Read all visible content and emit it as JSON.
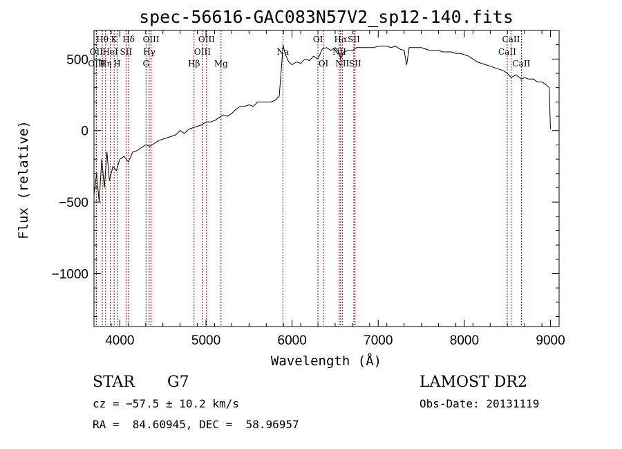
{
  "chart_data": {
    "type": "line",
    "title": "spec-56616-GAC083N57V2_sp12-140.fits",
    "xlabel": "Wavelength (Å)",
    "ylabel": "Flux (relative)",
    "xlim": [
      3700,
      9100
    ],
    "ylim": [
      -1370,
      700
    ],
    "x_ticks": [
      4000,
      5000,
      6000,
      7000,
      8000,
      9000
    ],
    "y_ticks": [
      -1000,
      -500,
      0,
      500
    ],
    "y_tick_labels": [
      "−1000",
      "−500",
      "0",
      "500"
    ],
    "series": [
      {
        "x": [
          3700,
          3730,
          3760,
          3790,
          3820,
          3850,
          3880,
          3920,
          3960,
          4000,
          4050,
          4100,
          4150,
          4200,
          4250,
          4300,
          4350,
          4400,
          4450,
          4500,
          4550,
          4600,
          4650,
          4700,
          4750,
          4800,
          4850,
          4900,
          4950,
          5000,
          5050,
          5100,
          5150,
          5200,
          5250,
          5300,
          5350,
          5400,
          5450,
          5500,
          5550,
          5600,
          5650,
          5700,
          5750,
          5800,
          5850,
          5880,
          5895,
          5910,
          5930,
          5960,
          6000,
          6050,
          6100,
          6150,
          6200,
          6250,
          6300,
          6350,
          6400,
          6450,
          6500,
          6550,
          6563,
          6600,
          6650,
          6700,
          6750,
          6800,
          6850,
          6900,
          6950,
          7000,
          7050,
          7100,
          7150,
          7200,
          7250,
          7300,
          7330,
          7360,
          7400,
          7450,
          7500,
          7550,
          7600,
          7650,
          7700,
          7750,
          7800,
          7850,
          7900,
          7950,
          8000,
          8050,
          8100,
          8150,
          8200,
          8250,
          8300,
          8350,
          8400,
          8450,
          8500,
          8542,
          8600,
          8662,
          8700,
          8750,
          8800,
          8850,
          8900,
          8950,
          8985,
          8995,
          9000
        ],
        "y": [
          -450,
          -300,
          -500,
          -200,
          -400,
          -150,
          -350,
          -250,
          -280,
          -200,
          -180,
          -220,
          -150,
          -140,
          -120,
          -100,
          -110,
          -90,
          -70,
          -60,
          -50,
          -40,
          -30,
          0,
          -20,
          10,
          20,
          30,
          40,
          60,
          60,
          70,
          90,
          110,
          100,
          120,
          150,
          170,
          170,
          180,
          170,
          200,
          200,
          200,
          200,
          210,
          240,
          470,
          600,
          560,
          520,
          480,
          460,
          480,
          470,
          500,
          490,
          520,
          500,
          570,
          580,
          560,
          580,
          540,
          500,
          550,
          560,
          560,
          580,
          580,
          580,
          580,
          580,
          590,
          590,
          590,
          580,
          590,
          570,
          560,
          460,
          580,
          580,
          580,
          580,
          570,
          560,
          560,
          560,
          550,
          550,
          550,
          540,
          540,
          530,
          520,
          500,
          480,
          470,
          460,
          450,
          440,
          430,
          420,
          400,
          370,
          390,
          360,
          370,
          360,
          360,
          340,
          340,
          320,
          300,
          100,
          10
        ]
      }
    ],
    "line_markers": [
      {
        "label": "Hθ",
        "wavelength": 3797,
        "row": 0
      },
      {
        "label": "OII",
        "wavelength": 3727,
        "row": 1
      },
      {
        "label": "OIII",
        "wavelength": 3727,
        "row": 2
      },
      {
        "label": "Hη",
        "wavelength": 3835,
        "row": 2
      },
      {
        "label": "HeI",
        "wavelength": 3889,
        "row": 1
      },
      {
        "label": "K",
        "wavelength": 3934,
        "row": 0
      },
      {
        "label": "H",
        "wavelength": 3969,
        "row": 2
      },
      {
        "label": "SII",
        "wavelength": 4072,
        "row": 1
      },
      {
        "label": "Hδ",
        "wavelength": 4102,
        "row": 0
      },
      {
        "label": "OIII",
        "wavelength": 4363,
        "row": 0
      },
      {
        "label": "Hγ",
        "wavelength": 4341,
        "row": 1
      },
      {
        "label": "G",
        "wavelength": 4304,
        "row": 2
      },
      {
        "label": "Hβ",
        "wavelength": 4861,
        "row": 2
      },
      {
        "label": "OIII",
        "wavelength": 5007,
        "row": 0
      },
      {
        "label": "OIII",
        "wavelength": 4959,
        "row": 1
      },
      {
        "label": "Mg",
        "wavelength": 5175,
        "row": 2
      },
      {
        "label": "Na",
        "wavelength": 5893,
        "row": 1
      },
      {
        "label": "OI",
        "wavelength": 6300,
        "row": 0
      },
      {
        "label": "OI",
        "wavelength": 6364,
        "row": 2
      },
      {
        "label": "Hα",
        "wavelength": 6563,
        "row": 0
      },
      {
        "label": "NII",
        "wavelength": 6548,
        "row": 1
      },
      {
        "label": "NII",
        "wavelength": 6583,
        "row": 2
      },
      {
        "label": "SII",
        "wavelength": 6717,
        "row": 0
      },
      {
        "label": "SII",
        "wavelength": 6731,
        "row": 2
      },
      {
        "label": "CaII",
        "wavelength": 8542,
        "row": 0
      },
      {
        "label": "CaII",
        "wavelength": 8498,
        "row": 1
      },
      {
        "label": "CaII",
        "wavelength": 8662,
        "row": 2
      }
    ]
  },
  "info": {
    "object_type": "STAR",
    "subclass": "G7",
    "survey": "LAMOST DR2",
    "redshift": "cz = −57.5 ± 10.2 km/s",
    "obs_date": "Obs-Date: 20131119",
    "coords": "RA =  84.60945, DEC =  58.96957"
  },
  "colors": {
    "spectrum": "#000000",
    "line_marker": "#8b0000",
    "background": "#ffffff"
  }
}
